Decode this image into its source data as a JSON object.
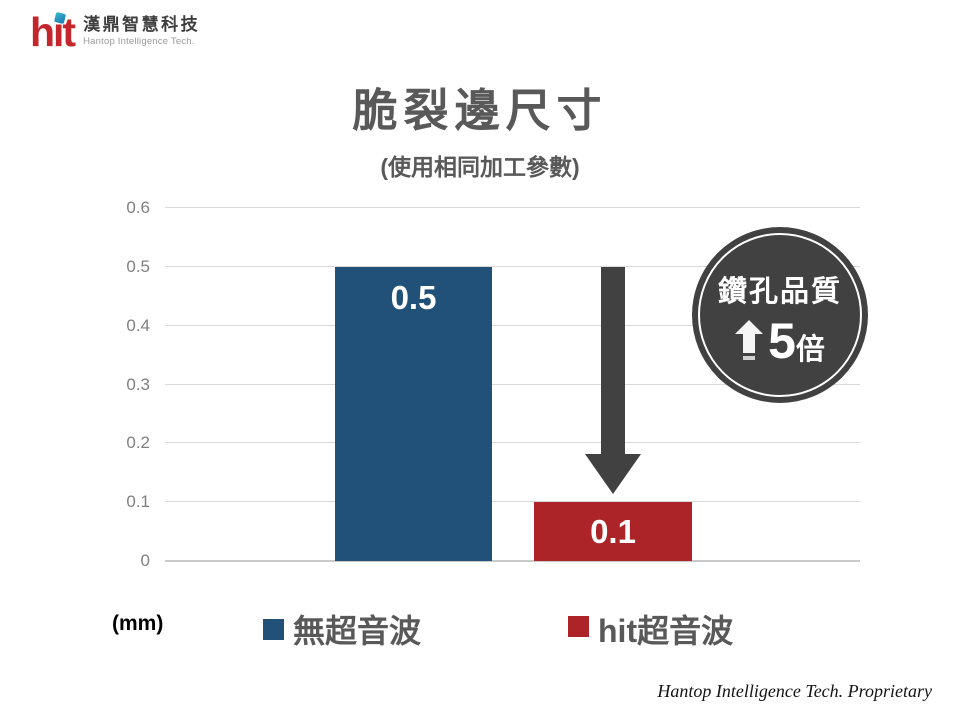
{
  "logo": {
    "wordmark": "hit",
    "company_zh": "漢鼎智慧科技",
    "company_en": "Hantop Intelligence Tech."
  },
  "title": "脆裂邊尺寸",
  "subtitle": "(使用相同加工參數)",
  "chart_data": {
    "type": "bar",
    "title": "脆裂邊尺寸",
    "subtitle": "(使用相同加工參數)",
    "categories": [
      "無超音波",
      "hit超音波"
    ],
    "values": [
      0.5,
      0.1
    ],
    "value_labels": [
      "0.5",
      "0.1"
    ],
    "series_colors": [
      "#215079",
      "#ac2328"
    ],
    "unit": "(mm)",
    "ylim": [
      0,
      0.6
    ],
    "y_tick_labels": [
      "0.6",
      "0.5",
      "0.4",
      "0.3",
      "0.2",
      "0.1",
      "0"
    ],
    "grid": true,
    "legend_position": "bottom",
    "annotation_arrow_direction": "down"
  },
  "badge": {
    "line1": "鑽孔品質",
    "arrow_direction": "up",
    "value": "5",
    "suffix": "倍"
  },
  "legend": {
    "items": [
      {
        "label": "無超音波",
        "color": "#215079"
      },
      {
        "label": "hit超音波",
        "color": "#ac2328"
      }
    ]
  },
  "unit_label": "(mm)",
  "footer": "Hantop Intelligence Tech. Proprietary",
  "colors": {
    "bar_no_ultrasonic": "#215079",
    "bar_hit_ultrasonic": "#ac2328",
    "arrow_and_badge": "#414141",
    "gridline": "#d9d9d9",
    "title_text": "#595959",
    "logo_red": "#c4262b",
    "logo_dot_teal": "#2fa9c4"
  }
}
